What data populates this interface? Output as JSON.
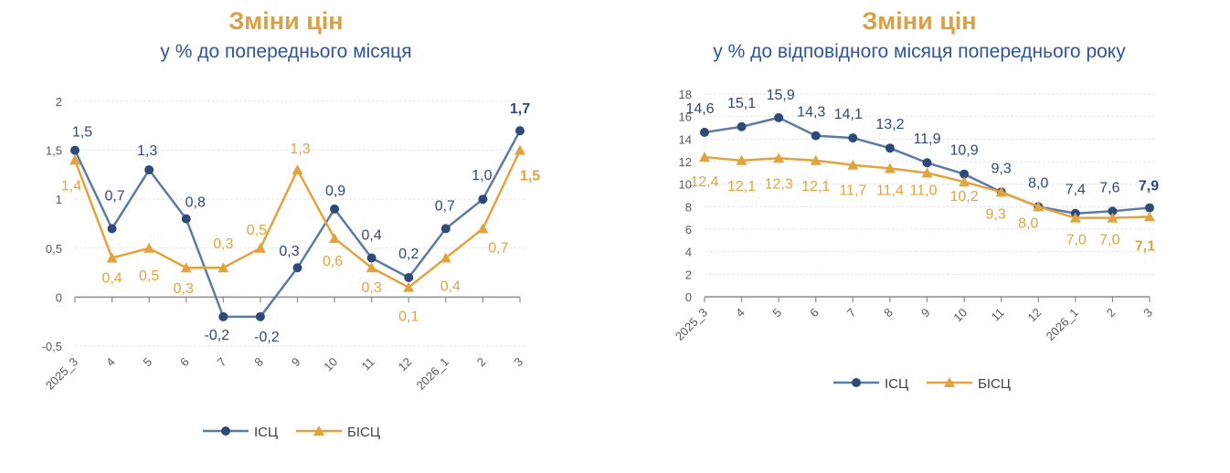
{
  "colors": {
    "isc_line": "#5A7BA6",
    "isc_marker": "#2E4A78",
    "isc_label": "#2E4A78",
    "bisc": "#E2A33E",
    "title": "#D9A044",
    "subtitle": "#2F5597",
    "grid": "#E6E6E6",
    "axis": "#8C8C8C"
  },
  "chart_data": [
    {
      "type": "line",
      "title": "Зміни цін",
      "subtitle": "у % до попереднього місяця",
      "categories": [
        "2025_3",
        "4",
        "5",
        "6",
        "7",
        "8",
        "9",
        "10",
        "11",
        "12",
        "2026_1",
        "2",
        "3"
      ],
      "ylim": [
        -0.5,
        2
      ],
      "yticks": [
        "-0,5",
        "0",
        "0,5",
        "1",
        "1,5",
        "2"
      ],
      "ytick_values": [
        -0.5,
        0,
        0.5,
        1,
        1.5,
        2
      ],
      "grid": true,
      "legend": "bottom",
      "series": [
        {
          "name": "ІСЦ",
          "marker": "circle",
          "values": [
            1.5,
            0.7,
            1.3,
            0.8,
            -0.2,
            -0.2,
            0.3,
            0.9,
            0.4,
            0.2,
            0.7,
            1.0,
            1.7
          ],
          "labels": [
            "1,5",
            "0,7",
            "1,3",
            "0,8",
            "-0,2",
            "-0,2",
            "0,3",
            "0,9",
            "0,4",
            "0,2",
            "0,7",
            "1,0",
            "1,7"
          ]
        },
        {
          "name": "БІСЦ",
          "marker": "triangle",
          "values": [
            1.4,
            0.4,
            0.5,
            0.3,
            0.3,
            0.5,
            1.3,
            0.6,
            0.3,
            0.1,
            0.4,
            0.7,
            1.5
          ],
          "labels": [
            "1,4",
            "0,4",
            "0,5",
            "0,3",
            "0,3",
            "0,5",
            "1,3",
            "0,6",
            "0,3",
            "0,1",
            "0,4",
            "0,7",
            "1,5"
          ]
        }
      ]
    },
    {
      "type": "line",
      "title": "Зміни цін",
      "subtitle": "у % до відповідного місяця попереднього року",
      "categories": [
        "2025_3",
        "4",
        "5",
        "6",
        "7",
        "8",
        "9",
        "10",
        "11",
        "12",
        "2026_1",
        "2",
        "3"
      ],
      "ylim": [
        0,
        18
      ],
      "yticks": [
        "0",
        "2",
        "4",
        "6",
        "8",
        "10",
        "12",
        "14",
        "16",
        "18"
      ],
      "ytick_values": [
        0,
        2,
        4,
        6,
        8,
        10,
        12,
        14,
        16,
        18
      ],
      "grid": true,
      "legend": "bottom",
      "series": [
        {
          "name": "ІСЦ",
          "marker": "circle",
          "values": [
            14.6,
            15.1,
            15.9,
            14.3,
            14.1,
            13.2,
            11.9,
            10.9,
            9.3,
            8.0,
            7.4,
            7.6,
            7.9
          ],
          "labels": [
            "14,6",
            "15,1",
            "15,9",
            "14,3",
            "14,1",
            "13,2",
            "11,9",
            "10,9",
            "9,3",
            "8,0",
            "7,4",
            "7,6",
            "7,9"
          ]
        },
        {
          "name": "БІСЦ",
          "marker": "triangle",
          "values": [
            12.4,
            12.1,
            12.3,
            12.1,
            11.7,
            11.4,
            11.0,
            10.2,
            9.3,
            8.0,
            7.0,
            7.0,
            7.1
          ],
          "labels": [
            "12,4",
            "12,1",
            "12,3",
            "12,1",
            "11,7",
            "11,4",
            "11,0",
            "10,2",
            "9,3",
            "8,0",
            "7,0",
            "7,0",
            "7,1"
          ]
        }
      ]
    }
  ]
}
